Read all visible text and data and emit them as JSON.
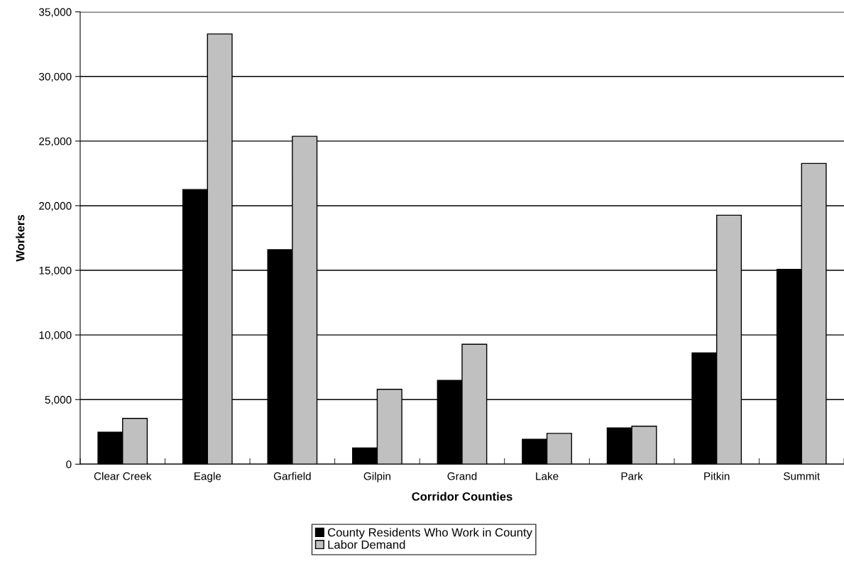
{
  "chart_data": {
    "type": "bar",
    "xlabel": "Corridor Counties",
    "ylabel": "Workers",
    "categories": [
      "Clear Creek",
      "Eagle",
      "Garfield",
      "Gilpin",
      "Grand",
      "Lake",
      "Park",
      "Pitkin",
      "Summit"
    ],
    "series": [
      {
        "name": "County Residents Who Work in County",
        "color": "#000000",
        "values": [
          2480,
          21250,
          16600,
          1250,
          6480,
          1920,
          2800,
          8610,
          15070
        ]
      },
      {
        "name": "Labor Demand",
        "color": "#c0c0c0",
        "values": [
          3540,
          33290,
          25370,
          5790,
          9280,
          2380,
          2940,
          19260,
          23270
        ]
      }
    ],
    "ylim": [
      0,
      35000
    ],
    "yticks": [
      {
        "value": 0,
        "label": "0"
      },
      {
        "value": 5000,
        "label": "5,000"
      },
      {
        "value": 10000,
        "label": "10,000"
      },
      {
        "value": 15000,
        "label": "15,000"
      },
      {
        "value": 20000,
        "label": "20,000"
      },
      {
        "value": 25000,
        "label": "25,000"
      },
      {
        "value": 30000,
        "label": "30,000"
      },
      {
        "value": 35000,
        "label": "35,000"
      }
    ],
    "grid": "y",
    "legend": "bottom"
  }
}
